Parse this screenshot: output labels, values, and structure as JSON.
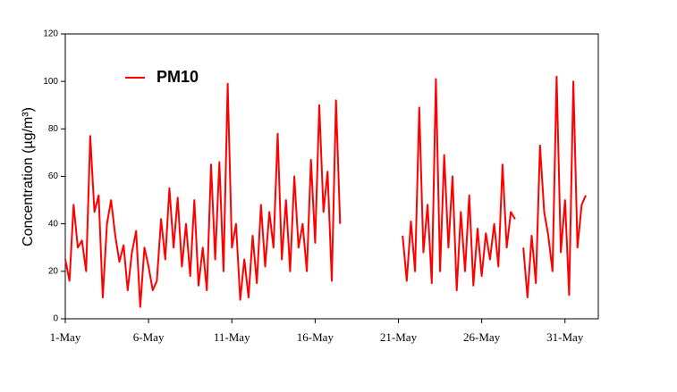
{
  "chart_data": {
    "type": "line",
    "y_label": "Concentration (µg/m³)",
    "x": [
      1.0,
      1.25,
      1.5,
      1.75,
      2.0,
      2.25,
      2.5,
      2.75,
      3.0,
      3.25,
      3.5,
      3.75,
      4.0,
      4.25,
      4.5,
      4.75,
      5.0,
      5.25,
      5.5,
      5.75,
      6.0,
      6.25,
      6.5,
      6.75,
      7.0,
      7.25,
      7.5,
      7.75,
      8.0,
      8.25,
      8.5,
      8.75,
      9.0,
      9.25,
      9.5,
      9.75,
      10.0,
      10.25,
      10.5,
      10.75,
      11.0,
      11.25,
      11.5,
      11.75,
      12.0,
      12.25,
      12.5,
      12.75,
      13.0,
      13.25,
      13.5,
      13.75,
      14.0,
      14.25,
      14.5,
      14.75,
      15.0,
      15.25,
      15.5,
      15.75,
      16.0,
      16.25,
      16.5,
      16.75,
      17.0,
      17.25,
      17.5,
      19,
      21.25,
      21.5,
      21.75,
      22.0,
      22.25,
      22.5,
      22.75,
      23.0,
      23.25,
      23.5,
      23.75,
      24.0,
      24.25,
      24.5,
      24.75,
      25.0,
      25.25,
      25.5,
      25.75,
      26.0,
      26.25,
      26.5,
      26.75,
      27.0,
      27.25,
      27.5,
      27.75,
      28.0,
      28.25,
      28.5,
      28.75,
      29.0,
      29.25,
      29.5,
      29.75,
      30.0,
      30.25,
      30.5,
      30.75,
      31.0,
      31.25,
      31.5,
      31.75,
      32.0,
      32.25
    ],
    "series": [
      {
        "name": "PM10",
        "color": "#ff0000",
        "values": [
          25,
          16,
          48,
          30,
          33,
          20,
          77,
          45,
          52,
          9,
          40,
          50,
          35,
          24,
          31,
          12,
          28,
          37,
          5,
          30,
          22,
          12,
          16,
          42,
          25,
          55,
          30,
          51,
          22,
          40,
          18,
          50,
          14,
          30,
          12,
          65,
          25,
          66,
          20,
          99,
          30,
          40,
          8,
          25,
          9,
          35,
          15,
          48,
          22,
          45,
          30,
          78,
          25,
          50,
          20,
          60,
          30,
          40,
          20,
          67,
          32,
          90,
          45,
          62,
          16,
          92,
          40,
          null,
          35,
          16,
          41,
          20,
          89,
          28,
          48,
          15,
          101,
          20,
          69,
          30,
          60,
          12,
          45,
          20,
          52,
          14,
          38,
          18,
          36,
          25,
          40,
          22,
          65,
          30,
          45,
          42,
          null,
          30,
          9,
          35,
          15,
          73,
          45,
          35,
          20,
          102,
          28,
          50,
          10,
          100,
          30,
          48,
          52
        ]
      }
    ],
    "xlim": [
      1,
      33
    ],
    "xticks": [
      {
        "value": 1,
        "label": "1-May"
      },
      {
        "value": 6,
        "label": "6-May"
      },
      {
        "value": 11,
        "label": "11-May"
      },
      {
        "value": 16,
        "label": "16-May"
      },
      {
        "value": 21,
        "label": "21-May"
      },
      {
        "value": 26,
        "label": "26-May"
      },
      {
        "value": 31,
        "label": "31-May"
      }
    ],
    "ylim": [
      0,
      120
    ],
    "yticks": [
      0,
      20,
      40,
      60,
      80,
      100,
      120
    ],
    "legend": "top-left"
  }
}
